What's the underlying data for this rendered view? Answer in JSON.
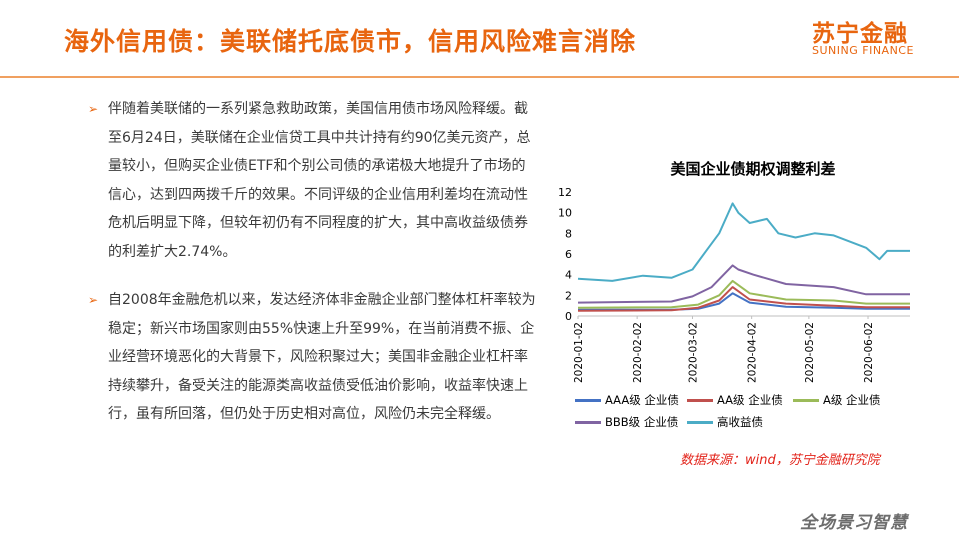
{
  "header": {
    "title": "海外信用债：美联储托底债市，信用风险难言消除",
    "logo_cn": "苏宁金融",
    "logo_en": "SUNING FINANCE"
  },
  "paragraphs": [
    "伴随着美联储的一系列紧急救助政策，美国信用债市场风险释缓。截至6月24日，美联储在企业信贷工具中共计持有约90亿美元资产，总量较小，但购买企业债ETF和个别公司债的承诺极大地提升了市场的信心，达到四两拨千斤的效果。不同评级的企业信用利差均在流动性危机后明显下降，但较年初仍有不同程度的扩大，其中高收益级债券的利差扩大2.74%。",
    "自2008年金融危机以来，发达经济体非金融企业部门整体杠杆率较为稳定；新兴市场国家则由55%快速上升至99%，在当前消费不振、企业经营环境恶化的大背景下，风险积聚过大；美国非金融企业杠杆率持续攀升，备受关注的能源类高收益债受低油价影响，收益率快速上行，虽有所回落，但仍处于历史相对高位，风险仍未完全释缓。"
  ],
  "chart_data": {
    "type": "line",
    "title": "美国企业债期权调整利差",
    "ylim": [
      0,
      12
    ],
    "yticks": [
      0,
      2,
      4,
      6,
      8,
      10,
      12
    ],
    "x_range": [
      "2020-01-02",
      "2020-06-24"
    ],
    "x_ticks": [
      "2020-01-02",
      "2020-02-02",
      "2020-03-02",
      "2020-04-02",
      "2020-05-02",
      "2020-06-02"
    ],
    "series": [
      {
        "name": "AAA级 企业债",
        "color": "#4472c4",
        "points": [
          [
            "2020-01-02",
            0.6
          ],
          [
            "2020-02-20",
            0.6
          ],
          [
            "2020-03-05",
            0.7
          ],
          [
            "2020-03-16",
            1.2
          ],
          [
            "2020-03-23",
            2.2
          ],
          [
            "2020-04-01",
            1.3
          ],
          [
            "2020-04-20",
            0.9
          ],
          [
            "2020-05-15",
            0.8
          ],
          [
            "2020-06-01",
            0.7
          ],
          [
            "2020-06-24",
            0.7
          ]
        ]
      },
      {
        "name": "AA级 企业债",
        "color": "#c0504d",
        "points": [
          [
            "2020-01-02",
            0.5
          ],
          [
            "2020-02-20",
            0.55
          ],
          [
            "2020-03-05",
            0.8
          ],
          [
            "2020-03-16",
            1.5
          ],
          [
            "2020-03-23",
            2.8
          ],
          [
            "2020-04-01",
            1.6
          ],
          [
            "2020-04-20",
            1.2
          ],
          [
            "2020-05-15",
            1.0
          ],
          [
            "2020-06-01",
            0.85
          ],
          [
            "2020-06-24",
            0.85
          ]
        ]
      },
      {
        "name": "A级 企业债",
        "color": "#9bbb59",
        "points": [
          [
            "2020-01-02",
            0.8
          ],
          [
            "2020-02-20",
            0.85
          ],
          [
            "2020-03-05",
            1.1
          ],
          [
            "2020-03-16",
            2.0
          ],
          [
            "2020-03-23",
            3.4
          ],
          [
            "2020-04-01",
            2.2
          ],
          [
            "2020-04-20",
            1.6
          ],
          [
            "2020-05-15",
            1.5
          ],
          [
            "2020-06-01",
            1.2
          ],
          [
            "2020-06-24",
            1.2
          ]
        ]
      },
      {
        "name": "BBB级 企业债",
        "color": "#8064a2",
        "points": [
          [
            "2020-01-02",
            1.3
          ],
          [
            "2020-02-20",
            1.4
          ],
          [
            "2020-03-02",
            1.9
          ],
          [
            "2020-03-12",
            2.8
          ],
          [
            "2020-03-23",
            4.9
          ],
          [
            "2020-03-26",
            4.5
          ],
          [
            "2020-04-03",
            4.0
          ],
          [
            "2020-04-20",
            3.1
          ],
          [
            "2020-05-15",
            2.8
          ],
          [
            "2020-06-01",
            2.1
          ],
          [
            "2020-06-24",
            2.1
          ]
        ]
      },
      {
        "name": "高收益债",
        "color": "#4bacc6",
        "points": [
          [
            "2020-01-02",
            3.6
          ],
          [
            "2020-01-20",
            3.4
          ],
          [
            "2020-02-05",
            3.9
          ],
          [
            "2020-02-20",
            3.7
          ],
          [
            "2020-03-02",
            4.5
          ],
          [
            "2020-03-10",
            6.5
          ],
          [
            "2020-03-16",
            8.0
          ],
          [
            "2020-03-23",
            10.9
          ],
          [
            "2020-03-26",
            10.0
          ],
          [
            "2020-04-01",
            9.0
          ],
          [
            "2020-04-10",
            9.4
          ],
          [
            "2020-04-16",
            8.0
          ],
          [
            "2020-04-25",
            7.6
          ],
          [
            "2020-05-05",
            8.0
          ],
          [
            "2020-05-15",
            7.8
          ],
          [
            "2020-06-01",
            6.6
          ],
          [
            "2020-06-08",
            5.5
          ],
          [
            "2020-06-12",
            6.3
          ],
          [
            "2020-06-24",
            6.3
          ]
        ]
      }
    ],
    "legend_position": "bottom"
  },
  "source": "数据来源：wind，苏宁金融研究院",
  "footer": {
    "slogan": "全场景习智慧"
  }
}
